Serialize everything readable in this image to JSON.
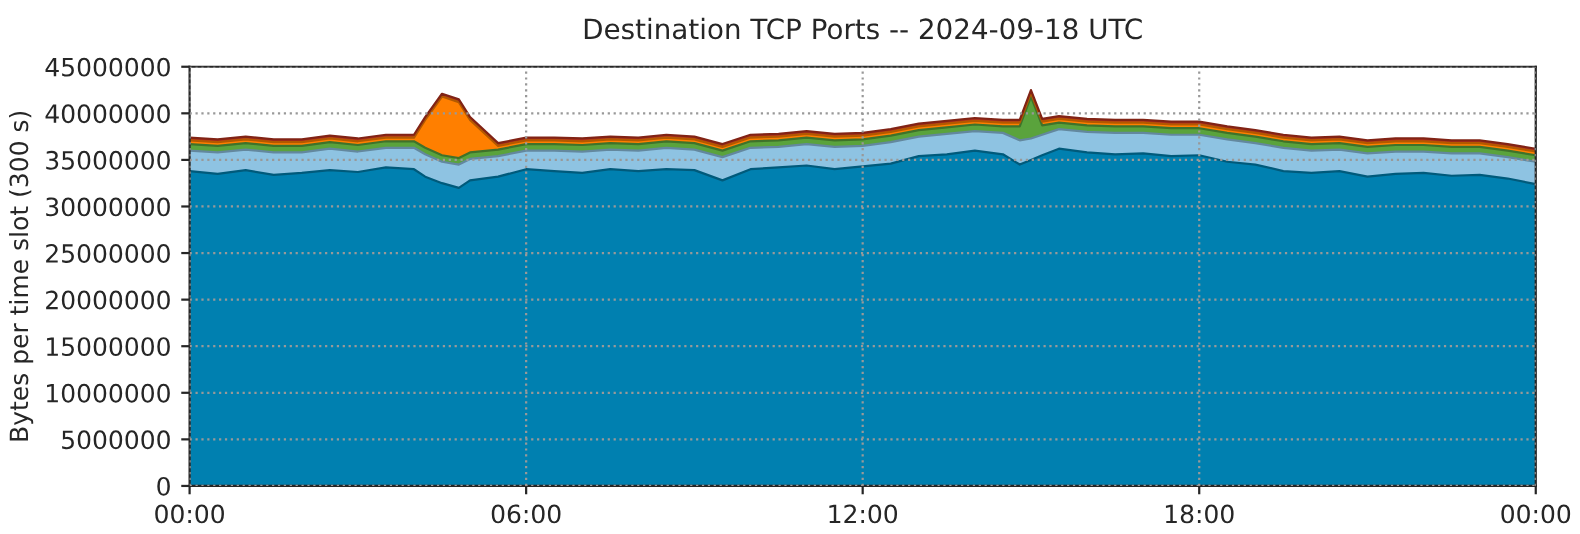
{
  "chart_data": {
    "type": "area",
    "stacked": true,
    "title": "Destination TCP Ports -- 2024-09-18 UTC",
    "ylabel": "Bytes per time slot (300 s)",
    "x": [
      0,
      0.5,
      1,
      1.5,
      2,
      2.5,
      3,
      3.5,
      4,
      4.2,
      4.5,
      4.8,
      5.0,
      5.5,
      6,
      6.5,
      7,
      7.5,
      8,
      8.5,
      9,
      9.5,
      10,
      10.5,
      11,
      11.5,
      12,
      12.5,
      13,
      13.5,
      14,
      14.5,
      14.8,
      15,
      15.2,
      15.5,
      16,
      16.5,
      17,
      17.5,
      18,
      18.5,
      19,
      19.5,
      20,
      20.5,
      21,
      21.5,
      22,
      22.5,
      23,
      23.5,
      24
    ],
    "series": [
      {
        "color": "#0080b0",
        "values": [
          33800000,
          33500000,
          33900000,
          33400000,
          33600000,
          33900000,
          33700000,
          34200000,
          34000000,
          33200000,
          32500000,
          32000000,
          32800000,
          33200000,
          34000000,
          33800000,
          33600000,
          34000000,
          33800000,
          34000000,
          33900000,
          32800000,
          34000000,
          34200000,
          34400000,
          34000000,
          34300000,
          34600000,
          35400000,
          35600000,
          36000000,
          35600000,
          34500000,
          35000000,
          35500000,
          36200000,
          35800000,
          35600000,
          35700000,
          35400000,
          35500000,
          34800000,
          34500000,
          33800000,
          33600000,
          33800000,
          33200000,
          33500000,
          33600000,
          33300000,
          33400000,
          33000000,
          32400000
        ]
      },
      {
        "color": "#8ec3e2",
        "values": [
          2200000,
          2300000,
          2200000,
          2400000,
          2200000,
          2300000,
          2200000,
          2100000,
          2300000,
          2400000,
          2300000,
          2500000,
          2300000,
          2200000,
          2000000,
          2200000,
          2300000,
          2100000,
          2200000,
          2300000,
          2200000,
          2500000,
          2300000,
          2200000,
          2300000,
          2400000,
          2200000,
          2300000,
          2100000,
          2200000,
          2100000,
          2300000,
          2600000,
          2300000,
          2200000,
          2100000,
          2200000,
          2300000,
          2200000,
          2300000,
          2200000,
          2400000,
          2300000,
          2500000,
          2400000,
          2300000,
          2500000,
          2400000,
          2300000,
          2400000,
          2300000,
          2300000,
          2400000
        ]
      },
      {
        "color": "#5aa33c",
        "values": [
          700000,
          700000,
          700000,
          700000,
          700000,
          700000,
          700000,
          700000,
          700000,
          700000,
          700000,
          700000,
          700000,
          700000,
          700000,
          700000,
          700000,
          700000,
          700000,
          700000,
          700000,
          700000,
          700000,
          700000,
          700000,
          700000,
          700000,
          700000,
          700000,
          700000,
          700000,
          700000,
          1500000,
          4500000,
          1000000,
          700000,
          700000,
          700000,
          700000,
          700000,
          700000,
          700000,
          700000,
          700000,
          700000,
          700000,
          700000,
          700000,
          700000,
          700000,
          700000,
          700000,
          700000
        ]
      },
      {
        "color": "#ff7f00",
        "values": [
          400000,
          400000,
          400000,
          400000,
          400000,
          400000,
          400000,
          400000,
          400000,
          3000000,
          6300000,
          6000000,
          3500000,
          400000,
          400000,
          400000,
          400000,
          400000,
          400000,
          400000,
          400000,
          400000,
          400000,
          400000,
          400000,
          400000,
          400000,
          400000,
          400000,
          400000,
          400000,
          400000,
          400000,
          400000,
          400000,
          400000,
          400000,
          400000,
          400000,
          400000,
          400000,
          400000,
          400000,
          400000,
          400000,
          400000,
          400000,
          400000,
          400000,
          400000,
          400000,
          400000,
          400000
        ]
      },
      {
        "color": "#b8321e",
        "values": [
          300000,
          300000,
          300000,
          300000,
          300000,
          300000,
          300000,
          300000,
          300000,
          300000,
          300000,
          300000,
          300000,
          300000,
          300000,
          300000,
          300000,
          300000,
          300000,
          300000,
          300000,
          300000,
          300000,
          300000,
          300000,
          300000,
          300000,
          300000,
          300000,
          300000,
          300000,
          300000,
          300000,
          300000,
          300000,
          300000,
          300000,
          300000,
          300000,
          300000,
          300000,
          300000,
          300000,
          300000,
          300000,
          300000,
          300000,
          300000,
          300000,
          300000,
          300000,
          300000,
          300000
        ]
      }
    ],
    "xlim": [
      0,
      24
    ],
    "xticks": [
      {
        "value": 0,
        "label": "00:00"
      },
      {
        "value": 6,
        "label": "06:00"
      },
      {
        "value": 12,
        "label": "12:00"
      },
      {
        "value": 18,
        "label": "18:00"
      },
      {
        "value": 24,
        "label": "00:00"
      }
    ],
    "ylim": [
      0,
      45000000
    ],
    "yticks": [
      0,
      5000000,
      10000000,
      15000000,
      20000000,
      25000000,
      30000000,
      35000000,
      40000000,
      45000000
    ],
    "grid": true
  }
}
